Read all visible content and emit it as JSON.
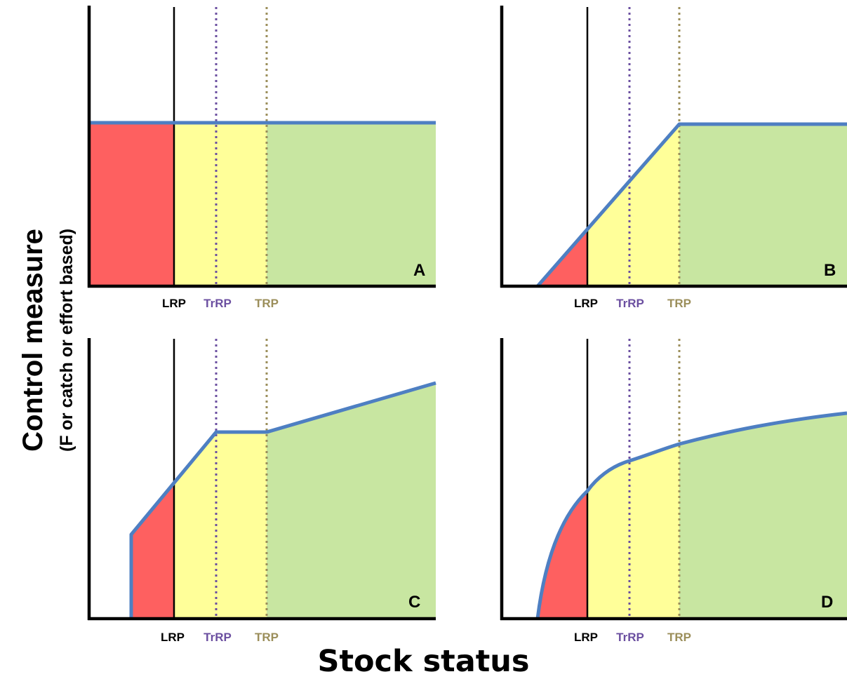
{
  "y_axis": {
    "title": "Control measure",
    "subtitle": "(F or catch or effort based)"
  },
  "x_axis": {
    "title": "Stock status"
  },
  "reference_labels": {
    "lrp": "LRP",
    "trrp": "TrRP",
    "trp": "TRP"
  },
  "colors": {
    "red_zone": "#fe6060",
    "yellow_zone": "#ffff99",
    "green_zone": "#c8e6a1",
    "hcr_line": "#4e7fc2",
    "trrp_line": "#6b4fa0",
    "trp_line": "#9b8e5a"
  },
  "panels": [
    {
      "id": "A",
      "letter": "A",
      "shape": "constant"
    },
    {
      "id": "B",
      "letter": "B",
      "shape": "linear-ramp-to-plateau"
    },
    {
      "id": "C",
      "letter": "C",
      "shape": "ramp-plateau-rising"
    },
    {
      "id": "D",
      "letter": "D",
      "shape": "concave-curve"
    }
  ]
}
